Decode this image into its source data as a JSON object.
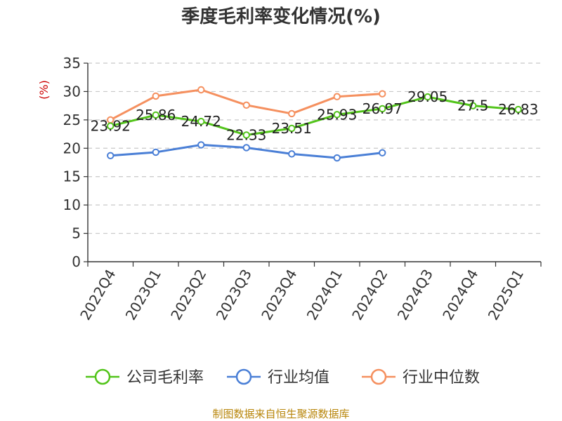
{
  "chart_data": {
    "type": "line",
    "title": "季度毛利率变化情况(%)",
    "ylabel": "(%)",
    "xlabel": "",
    "ylim": [
      0,
      35
    ],
    "yticks": [
      0,
      5,
      10,
      15,
      20,
      25,
      30,
      35
    ],
    "grid": true,
    "legend_position": "bottom",
    "categories": [
      "2022Q4",
      "2023Q1",
      "2023Q2",
      "2023Q3",
      "2023Q4",
      "2024Q1",
      "2024Q2",
      "2024Q3",
      "2024Q4",
      "2025Q1"
    ],
    "series": [
      {
        "name": "公司毛利率",
        "color": "#52c41a",
        "values": [
          23.92,
          25.86,
          24.72,
          22.33,
          23.51,
          25.93,
          26.97,
          29.05,
          27.5,
          26.83
        ],
        "data_labels": [
          "23.92",
          "25.86",
          "24.72",
          "22.33",
          "23.51",
          "25.93",
          "26.97",
          "29.05",
          "27.5",
          "26.83"
        ]
      },
      {
        "name": "行业均值",
        "color": "#4a7fd6",
        "values": [
          18.7,
          19.3,
          20.6,
          20.1,
          19.0,
          18.3,
          19.2,
          null,
          null,
          null
        ]
      },
      {
        "name": "行业中位数",
        "color": "#f5905f",
        "values": [
          25.0,
          29.2,
          30.3,
          27.6,
          26.1,
          29.1,
          29.6,
          null,
          null,
          null
        ]
      }
    ]
  },
  "source": "制图数据来自恒生聚源数据库"
}
